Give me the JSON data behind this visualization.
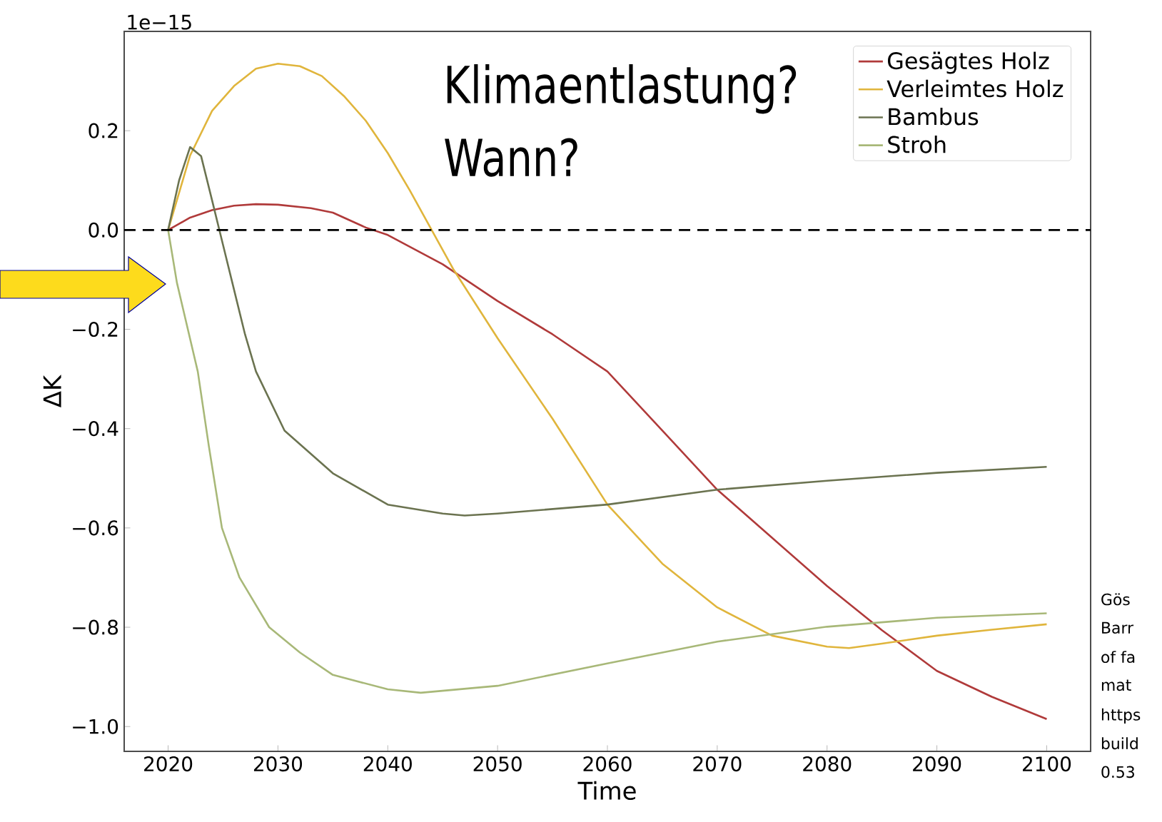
{
  "chart_data": {
    "type": "line",
    "xlabel": "Time",
    "ylabel": "ΔK",
    "xlim": [
      2016,
      2104
    ],
    "ylim": [
      -1.05,
      0.4
    ],
    "xticks": [
      2020,
      2030,
      2040,
      2050,
      2060,
      2070,
      2080,
      2090,
      2100
    ],
    "yticks": [
      {
        "value": -1.0,
        "label": "−1.0"
      },
      {
        "value": -0.8,
        "label": "−0.8"
      },
      {
        "value": -0.6,
        "label": "−0.6"
      },
      {
        "value": -0.4,
        "label": "−0.4"
      },
      {
        "value": -0.2,
        "label": "−0.2"
      },
      {
        "value": 0.0,
        "label": "0.0"
      },
      {
        "value": 0.2,
        "label": "0.2"
      }
    ],
    "grid": false,
    "legend": "top right",
    "marker": "none",
    "line_style": "solid",
    "ref_lines": [
      {
        "axis": "y",
        "value": 0,
        "color": "#000000",
        "line_style": "dashed"
      }
    ],
    "annotations": [
      "1e−15",
      "Klimaentlastung?",
      "Wann?",
      "Gös",
      "Barr",
      "of fa",
      "mat",
      "https",
      "build",
      "0.53"
    ],
    "series": [
      {
        "name": "Gesägtes Holz",
        "color": "#b03a3a",
        "x": [
          2020,
          2022,
          2024,
          2026,
          2028,
          2030,
          2033,
          2035,
          2038,
          2040,
          2045,
          2050,
          2055,
          2060,
          2065,
          2070,
          2075,
          2080,
          2085,
          2090,
          2095,
          2100
        ],
        "values": [
          0,
          0.025,
          0.04,
          0.049,
          0.052,
          0.051,
          0.044,
          0.035,
          0.005,
          -0.01,
          -0.069,
          -0.143,
          -0.21,
          -0.285,
          -0.404,
          -0.523,
          -0.62,
          -0.717,
          -0.806,
          -0.888,
          -0.94,
          -0.985
        ]
      },
      {
        "name": "Verleimtes Holz",
        "color": "#e0b53c",
        "x": [
          2020,
          2022,
          2024,
          2026,
          2028,
          2030,
          2032,
          2034,
          2036,
          2038,
          2040,
          2042,
          2044,
          2046,
          2050,
          2055,
          2060,
          2065,
          2070,
          2075,
          2080,
          2082,
          2085,
          2090,
          2095,
          2100
        ],
        "values": [
          0,
          0.15,
          0.24,
          0.29,
          0.325,
          0.335,
          0.33,
          0.31,
          0.27,
          0.22,
          0.155,
          0.08,
          0.0,
          -0.08,
          -0.218,
          -0.38,
          -0.553,
          -0.672,
          -0.76,
          -0.817,
          -0.839,
          -0.842,
          -0.833,
          -0.817,
          -0.805,
          -0.794
        ]
      },
      {
        "name": "Bambus",
        "color": "#6b7350",
        "x": [
          2020,
          2021,
          2022,
          2023,
          2024,
          2025,
          2026,
          2027,
          2028,
          2030.6,
          2035,
          2040,
          2045,
          2047,
          2050,
          2060,
          2070,
          2080,
          2090,
          2100
        ],
        "values": [
          0,
          0.1,
          0.167,
          0.149,
          0.06,
          -0.03,
          -0.12,
          -0.21,
          -0.285,
          -0.404,
          -0.49,
          -0.553,
          -0.571,
          -0.575,
          -0.571,
          -0.553,
          -0.523,
          -0.505,
          -0.489,
          -0.477
        ]
      },
      {
        "name": "Stroh",
        "color": "#a8b878",
        "x": [
          2020,
          2020.8,
          2022.7,
          2023.7,
          2024.9,
          2026.5,
          2029.2,
          2032,
          2035,
          2040,
          2043,
          2050,
          2060,
          2070,
          2080,
          2090,
          2100
        ],
        "values": [
          0,
          -0.106,
          -0.285,
          -0.434,
          -0.6,
          -0.7,
          -0.8,
          -0.851,
          -0.896,
          -0.925,
          -0.932,
          -0.918,
          -0.873,
          -0.829,
          -0.799,
          -0.781,
          -0.772
        ]
      }
    ]
  }
}
